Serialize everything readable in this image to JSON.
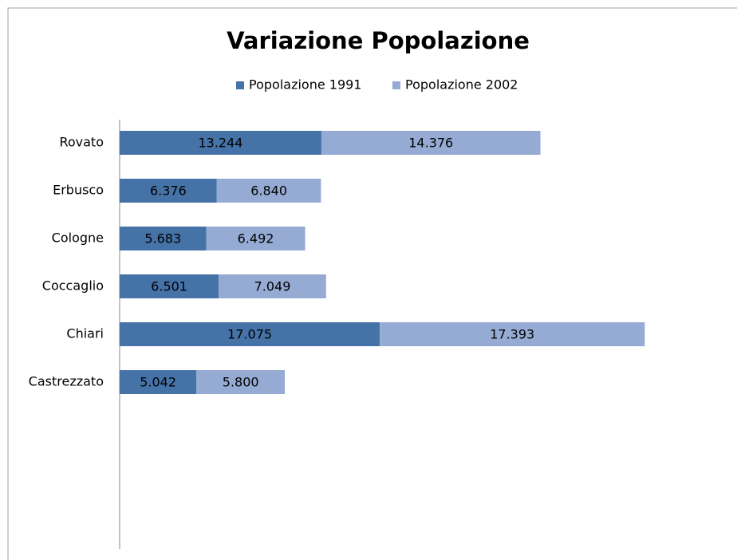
{
  "chart_data": {
    "type": "stacked-barh",
    "title": "Variazione Popolazione",
    "categories": [
      "Rovato",
      "Erbusco",
      "Cologne",
      "Coccaglio",
      "Chiari",
      "Castrezzato"
    ],
    "series": [
      {
        "name": "Popolazione 1991",
        "color": "#4572a7",
        "values": [
          13244,
          6376,
          5683,
          6501,
          17075,
          5042
        ],
        "value_labels": [
          "13.244",
          "6.376",
          "5.683",
          "6.501",
          "17.075",
          "5.042"
        ]
      },
      {
        "name": "Popolazione 2002",
        "color": "#95abd4",
        "values": [
          14376,
          6840,
          6492,
          7049,
          17393,
          5800
        ],
        "value_labels": [
          "14.376",
          "6.840",
          "6.492",
          "7.049",
          "17.393",
          "5.800"
        ]
      }
    ],
    "xlim": [
      0,
      40000
    ],
    "legend": "top"
  }
}
